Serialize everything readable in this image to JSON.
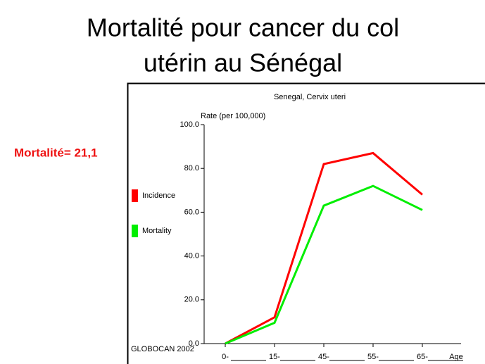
{
  "slide": {
    "title": [
      "Mortalité pour cancer du col",
      "utérin au Sénégal"
    ],
    "annotation": "Mortalité= 21,1"
  },
  "chart_data": {
    "type": "line",
    "title": "Senegal, Cervix uteri",
    "y_label": "Rate (per 100,000)",
    "x_label": "Age",
    "source": "GLOBOCAN 2002",
    "categories": [
      "0-",
      "15-",
      "45-",
      "55-",
      "65-"
    ],
    "series": [
      {
        "name": "Incidence",
        "color": "#ff0000",
        "values": [
          0,
          12,
          82,
          87,
          68
        ]
      },
      {
        "name": "Mortality",
        "color": "#00ee00",
        "values": [
          0,
          9.5,
          63,
          72,
          61
        ]
      }
    ],
    "ylim": [
      0,
      100
    ],
    "yticks": [
      {
        "value": 0,
        "label": "0.0"
      },
      {
        "value": 20,
        "label": "20.0"
      },
      {
        "value": 40,
        "label": "40.0"
      },
      {
        "value": 60,
        "label": "60.0"
      },
      {
        "value": 80,
        "label": "80.0"
      },
      {
        "value": 100,
        "label": "100.0"
      }
    ],
    "legend": "left"
  }
}
